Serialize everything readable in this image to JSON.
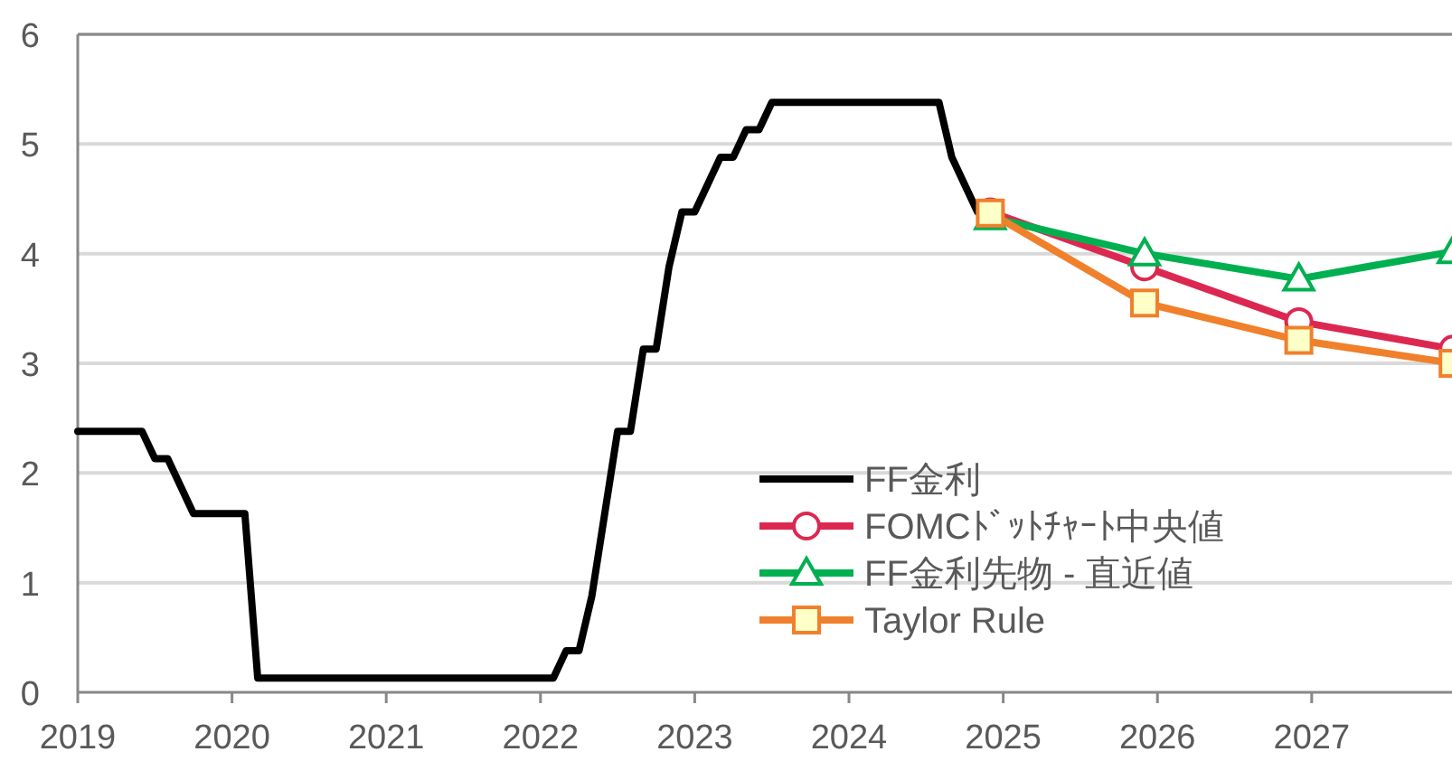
{
  "chart_data": {
    "type": "line",
    "xlim": [
      "2019-01",
      "2027-12"
    ],
    "ylim": [
      0,
      6
    ],
    "yticks": [
      0,
      1,
      2,
      3,
      4,
      5,
      6
    ],
    "xticks": [
      {
        "value": "2019-01",
        "label": "2019"
      },
      {
        "value": "2020-01",
        "label": "2020"
      },
      {
        "value": "2021-01",
        "label": "2021"
      },
      {
        "value": "2022-01",
        "label": "2022"
      },
      {
        "value": "2023-01",
        "label": "2023"
      },
      {
        "value": "2024-01",
        "label": "2024"
      },
      {
        "value": "2025-01",
        "label": "2025"
      },
      {
        "value": "2026-01",
        "label": "2026"
      },
      {
        "value": "2027-01",
        "label": "2027"
      }
    ],
    "grid": "y",
    "legend": "bottom",
    "line_style": "solid",
    "series": [
      {
        "name": "FF金利",
        "color": "#000000",
        "marker": "none",
        "x": [
          "2019-01",
          "2019-06",
          "2019-07",
          "2019-08",
          "2019-10",
          "2020-02",
          "2020-03",
          "2022-02",
          "2022-03",
          "2022-04",
          "2022-05",
          "2022-06",
          "2022-07",
          "2022-08",
          "2022-09",
          "2022-10",
          "2022-11",
          "2022-12",
          "2023-01",
          "2023-02",
          "2023-03",
          "2023-04",
          "2023-05",
          "2023-06",
          "2023-07",
          "2024-08",
          "2024-09",
          "2024-10",
          "2024-11",
          "2024-12"
        ],
        "values": [
          2.38,
          2.38,
          2.13,
          2.13,
          1.63,
          1.63,
          0.13,
          0.13,
          0.38,
          0.38,
          0.88,
          1.63,
          2.38,
          2.38,
          3.13,
          3.13,
          3.88,
          4.38,
          4.38,
          4.63,
          4.88,
          4.88,
          5.13,
          5.13,
          5.38,
          5.38,
          4.88,
          4.63,
          4.38,
          4.38
        ]
      },
      {
        "name": "FOMCﾄﾞｯﾄﾁｬｰﾄ中央値",
        "color": "#dc2850",
        "marker": "circle",
        "x": [
          "2024-12",
          "2025-12",
          "2026-12",
          "2027-12"
        ],
        "values": [
          4.38,
          3.88,
          3.38,
          3.13
        ]
      },
      {
        "name": "FF金利先物 - 直近値",
        "color": "#00b050",
        "marker": "triangle",
        "x": [
          "2024-12",
          "2025-12",
          "2026-12",
          "2027-12"
        ],
        "values": [
          4.33,
          4.0,
          3.77,
          4.02
        ]
      },
      {
        "name": "Taylor Rule",
        "color": "#f0802c",
        "marker": "square",
        "x": [
          "2024-12",
          "2025-12",
          "2026-12",
          "2027-12"
        ],
        "values": [
          4.37,
          3.55,
          3.21,
          3.0
        ]
      }
    ]
  }
}
